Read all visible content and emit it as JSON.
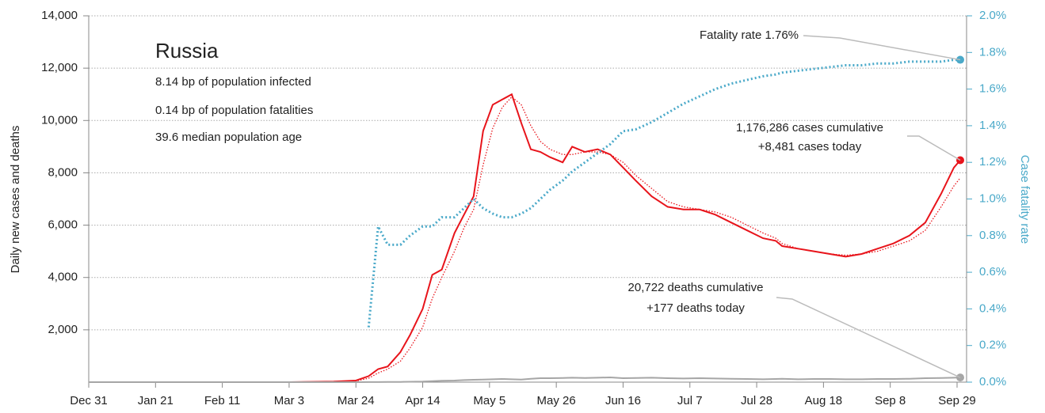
{
  "chart_data": {
    "type": "line",
    "title": "Russia",
    "stats": [
      "8.14 bp of population infected",
      "0.14 bp of population fatalities",
      "39.6 median population age"
    ],
    "y_label": "Daily new cases and deaths",
    "y2_label": "Case fatality rate",
    "x": [
      "Dec 31",
      "Mar 3",
      "Mar 17",
      "Mar 24",
      "Mar 28",
      "Mar 31",
      "Apr 3",
      "Apr 7",
      "Apr 10",
      "Apr 14",
      "Apr 17",
      "Apr 20",
      "Apr 24",
      "Apr 27",
      "Apr 30",
      "May 3",
      "May 6",
      "May 9",
      "May 12",
      "May 15",
      "May 18",
      "May 21",
      "May 24",
      "May 28",
      "May 31",
      "Jun 4",
      "Jun 8",
      "Jun 12",
      "Jun 16",
      "Jun 20",
      "Jun 25",
      "Jun 30",
      "Jul 5",
      "Jul 10",
      "Jul 15",
      "Jul 20",
      "Jul 25",
      "Jul 30",
      "Aug 3",
      "Aug 5",
      "Aug 10",
      "Aug 15",
      "Aug 20",
      "Aug 25",
      "Aug 30",
      "Sep 4",
      "Sep 9",
      "Sep 14",
      "Sep 19",
      "Sep 24",
      "Sep 28",
      "Sep 30"
    ],
    "series": [
      {
        "color": "#e8141b",
        "style": "solid",
        "values": [
          0,
          0,
          20,
          60,
          230,
          500,
          600,
          1150,
          1800,
          2800,
          4100,
          4300,
          5700,
          6400,
          7100,
          9600,
          10600,
          10800,
          11000,
          9900,
          8900,
          8800,
          8600,
          8400,
          9000,
          8800,
          8900,
          8700,
          8200,
          7700,
          7100,
          6700,
          6600,
          6600,
          6400,
          6100,
          5800,
          5500,
          5400,
          5200,
          5100,
          5000,
          4900,
          4800,
          4900,
          5100,
          5300,
          5600,
          6100,
          7200,
          8200,
          8481
        ]
      },
      {
        "color": "#e8141b",
        "style": "dotted",
        "values": [
          0,
          0,
          10,
          40,
          150,
          350,
          500,
          800,
          1300,
          2100,
          3200,
          4000,
          5000,
          5900,
          6600,
          8300,
          9700,
          10500,
          10900,
          10600,
          9800,
          9200,
          8900,
          8700,
          8700,
          8800,
          8800,
          8700,
          8400,
          7900,
          7400,
          6900,
          6700,
          6600,
          6500,
          6300,
          6000,
          5700,
          5500,
          5300,
          5100,
          5000,
          4900,
          4850,
          4900,
          5000,
          5200,
          5400,
          5800,
          6700,
          7500,
          7800
        ]
      },
      {
        "color": "#a6a6a6",
        "style": "solid",
        "values": [
          0,
          0,
          0,
          1,
          2,
          4,
          6,
          10,
          15,
          25,
          40,
          50,
          60,
          80,
          90,
          100,
          110,
          120,
          110,
          100,
          130,
          150,
          150,
          160,
          170,
          160,
          170,
          180,
          150,
          160,
          170,
          150,
          140,
          150,
          140,
          130,
          120,
          110,
          120,
          130,
          110,
          120,
          120,
          110,
          110,
          120,
          120,
          130,
          150,
          160,
          170,
          177
        ]
      },
      {
        "color": "#4aa9c9",
        "style": "dotted",
        "axis": "y2",
        "values": [
          null,
          null,
          null,
          null,
          0.3,
          0.85,
          0.75,
          0.75,
          0.8,
          0.85,
          0.85,
          0.9,
          0.9,
          0.95,
          1.0,
          0.95,
          0.92,
          0.9,
          0.9,
          0.92,
          0.95,
          1.0,
          1.05,
          1.1,
          1.15,
          1.2,
          1.25,
          1.3,
          1.37,
          1.38,
          1.42,
          1.47,
          1.52,
          1.56,
          1.6,
          1.63,
          1.65,
          1.67,
          1.68,
          1.69,
          1.7,
          1.71,
          1.72,
          1.73,
          1.73,
          1.74,
          1.74,
          1.75,
          1.75,
          1.75,
          1.76,
          1.76
        ]
      }
    ],
    "xlim": [
      "Dec 31",
      "Sep 29"
    ],
    "xticks": [
      "Dec 31",
      "Jan 21",
      "Feb 11",
      "Mar 3",
      "Mar 24",
      "Apr 14",
      "May 5",
      "May 26",
      "Jun 16",
      "Jul 7",
      "Jul 28",
      "Aug 18",
      "Sep 8",
      "Sep 29"
    ],
    "ylim": [
      0,
      14000
    ],
    "yticks": [
      {
        "value": 2000,
        "label": "2,000"
      },
      {
        "value": 4000,
        "label": "4,000"
      },
      {
        "value": 6000,
        "label": "6,000"
      },
      {
        "value": 8000,
        "label": "8,000"
      },
      {
        "value": 10000,
        "label": "10,000"
      },
      {
        "value": 12000,
        "label": "12,000"
      },
      {
        "value": 14000,
        "label": "14,000"
      }
    ],
    "y2lim": [
      0,
      2.0
    ],
    "y2ticks": [
      {
        "value": 0,
        "label": "0.0%"
      },
      {
        "value": 0.2,
        "label": "0.2%"
      },
      {
        "value": 0.4,
        "label": "0.4%"
      },
      {
        "value": 0.6,
        "label": "0.6%"
      },
      {
        "value": 0.8,
        "label": "0.8%"
      },
      {
        "value": 1.0,
        "label": "1.0%"
      },
      {
        "value": 1.2,
        "label": "1.2%"
      },
      {
        "value": 1.4,
        "label": "1.4%"
      },
      {
        "value": 1.6,
        "label": "1.6%"
      },
      {
        "value": 1.8,
        "label": "1.8%"
      },
      {
        "value": 2.0,
        "label": "2.0%"
      }
    ],
    "grid": true,
    "annotations": [
      {
        "lines": [
          "Fatality rate 1.76%"
        ]
      },
      {
        "lines": [
          "1,176,286 cases cumulative",
          "+8,481 cases today"
        ]
      },
      {
        "lines": [
          "20,722 deaths cumulative",
          "+177 deaths today"
        ]
      }
    ]
  }
}
